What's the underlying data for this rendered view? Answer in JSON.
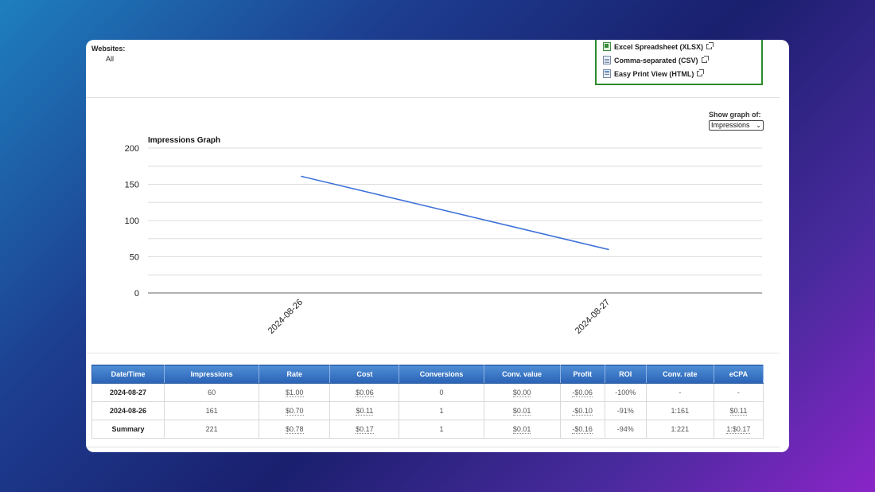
{
  "filters": {
    "websites_label": "Websites:",
    "websites_value": "All"
  },
  "export": {
    "items": [
      {
        "label": "Excel Spreadsheet (XLSX)",
        "icon": "xlsx-file-icon"
      },
      {
        "label": "Comma-separated (CSV)",
        "icon": "csv-file-icon"
      },
      {
        "label": "Easy Print View (HTML)",
        "icon": "html-file-icon"
      }
    ]
  },
  "graph_control": {
    "label": "Show graph of:",
    "selected": "Impressions"
  },
  "chart_data": {
    "type": "line",
    "title": "Impressions Graph",
    "x": [
      "2024-08-26",
      "2024-08-27"
    ],
    "series": [
      {
        "values": [
          161,
          60
        ]
      }
    ],
    "ylim": [
      0,
      200
    ],
    "yticks": [
      "200",
      "150",
      "100",
      "50",
      "0"
    ],
    "grid": true,
    "colors": {
      "line": "#3a6fd8",
      "grid": "#dddddd",
      "axis": "#666666"
    }
  },
  "table": {
    "headers": [
      "Date/Time",
      "Impressions",
      "Rate",
      "Cost",
      "Conversions",
      "Conv. value",
      "Profit",
      "ROI",
      "Conv. rate",
      "eCPA"
    ],
    "rows": [
      [
        "2024-08-27",
        "60",
        "$1.00",
        "$0.06",
        "0",
        "$0.00",
        "-$0.06",
        "-100%",
        "-",
        "-"
      ],
      [
        "2024-08-26",
        "161",
        "$0.70",
        "$0.11",
        "1",
        "$0.01",
        "-$0.10",
        "-91%",
        "1:161",
        "$0.11"
      ],
      [
        "Summary",
        "221",
        "$0.78",
        "$0.17",
        "1",
        "$0.01",
        "-$0.16",
        "-94%",
        "1:221",
        "1:$0.17"
      ]
    ]
  }
}
